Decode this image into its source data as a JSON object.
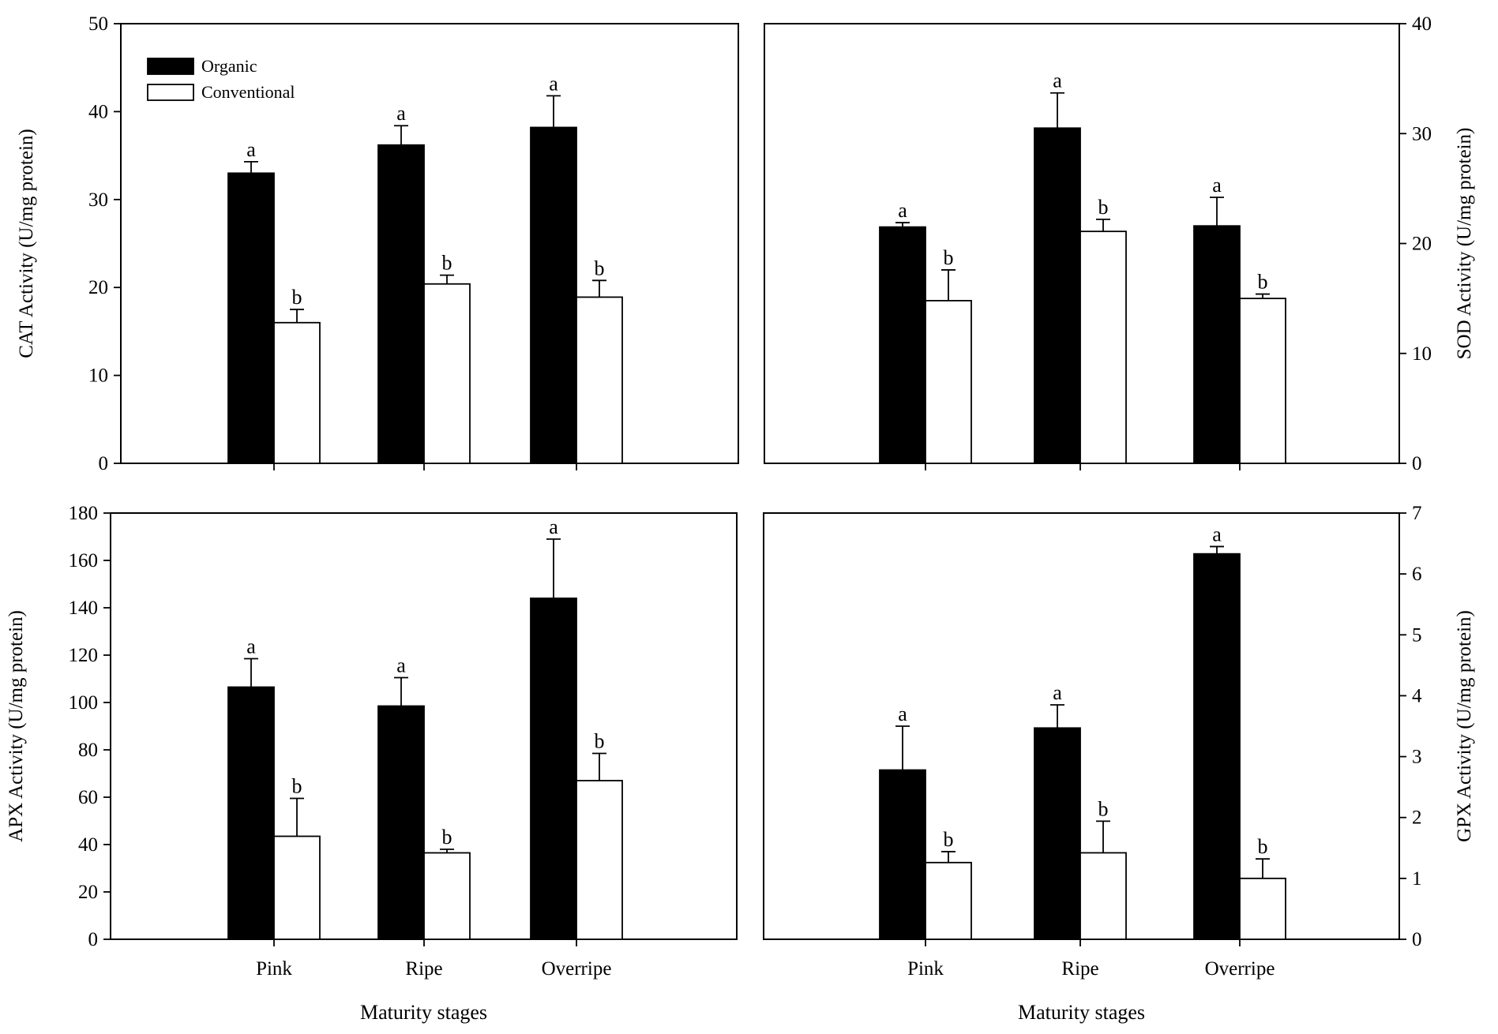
{
  "chart_data": [
    {
      "id": "cat",
      "type": "bar",
      "title": "",
      "xlabel": "",
      "ylabel": "CAT Activity (U/mg protein)",
      "y_axis_side": "left",
      "ylim": [
        0,
        50
      ],
      "yticks": [
        0,
        10,
        20,
        30,
        40,
        50
      ],
      "categories": [
        "Pink",
        "Ripe",
        "Overripe"
      ],
      "show_category_labels": false,
      "legend": {
        "placement": "top-left",
        "entries": [
          "Organic",
          "Conventional"
        ]
      },
      "series": [
        {
          "name": "Organic",
          "color": "#000000",
          "values": [
            33,
            36.2,
            38.2
          ],
          "errors": [
            1.3,
            2.2,
            3.6
          ],
          "letters": [
            "a",
            "a",
            "a"
          ]
        },
        {
          "name": "Conventional",
          "color": "#ffffff",
          "values": [
            16,
            20.4,
            18.9
          ],
          "errors": [
            1.5,
            1.0,
            1.9
          ],
          "letters": [
            "b",
            "b",
            "b"
          ]
        }
      ]
    },
    {
      "id": "sod",
      "type": "bar",
      "title": "",
      "xlabel": "",
      "ylabel": "SOD Activity (U/mg protein)",
      "y_axis_side": "right",
      "ylim": [
        0,
        40
      ],
      "yticks": [
        0,
        10,
        20,
        30,
        40
      ],
      "categories": [
        "Pink",
        "Ripe",
        "Overripe"
      ],
      "show_category_labels": false,
      "series": [
        {
          "name": "Organic",
          "color": "#000000",
          "values": [
            21.5,
            30.5,
            21.6
          ],
          "errors": [
            0.4,
            3.2,
            2.6
          ],
          "letters": [
            "a",
            "a",
            "a"
          ]
        },
        {
          "name": "Conventional",
          "color": "#ffffff",
          "values": [
            14.8,
            21.1,
            15
          ],
          "errors": [
            2.8,
            1.1,
            0.4
          ],
          "letters": [
            "b",
            "b",
            "b"
          ]
        }
      ]
    },
    {
      "id": "apx",
      "type": "bar",
      "title": "",
      "xlabel": "Maturity stages",
      "ylabel": "APX Activity (U/mg protein)",
      "y_axis_side": "left",
      "ylim": [
        0,
        180
      ],
      "yticks": [
        0,
        20,
        40,
        60,
        80,
        100,
        120,
        140,
        160,
        180
      ],
      "categories": [
        "Pink",
        "Ripe",
        "Overripe"
      ],
      "show_category_labels": true,
      "series": [
        {
          "name": "Organic",
          "color": "#000000",
          "values": [
            106.5,
            98.5,
            144
          ],
          "errors": [
            12,
            12,
            25
          ],
          "letters": [
            "a",
            "a",
            "a"
          ]
        },
        {
          "name": "Conventional",
          "color": "#ffffff",
          "values": [
            43.5,
            36.5,
            67
          ],
          "errors": [
            16,
            1.5,
            11.5
          ],
          "letters": [
            "b",
            "b",
            "b"
          ]
        }
      ]
    },
    {
      "id": "gpx",
      "type": "bar",
      "title": "",
      "xlabel": "Maturity stages",
      "ylabel": "GPX Activity (U/mg protein)",
      "y_axis_side": "right",
      "ylim": [
        0,
        7
      ],
      "yticks": [
        0,
        1,
        2,
        3,
        4,
        5,
        6,
        7
      ],
      "categories": [
        "Pink",
        "Ripe",
        "Overripe"
      ],
      "show_category_labels": true,
      "series": [
        {
          "name": "Organic",
          "color": "#000000",
          "values": [
            2.78,
            3.47,
            6.33
          ],
          "errors": [
            0.72,
            0.38,
            0.12
          ],
          "letters": [
            "a",
            "a",
            "a"
          ]
        },
        {
          "name": "Conventional",
          "color": "#ffffff",
          "values": [
            1.26,
            1.42,
            1.0
          ],
          "errors": [
            0.18,
            0.52,
            0.32
          ],
          "letters": [
            "b",
            "b",
            "b"
          ]
        }
      ]
    }
  ]
}
